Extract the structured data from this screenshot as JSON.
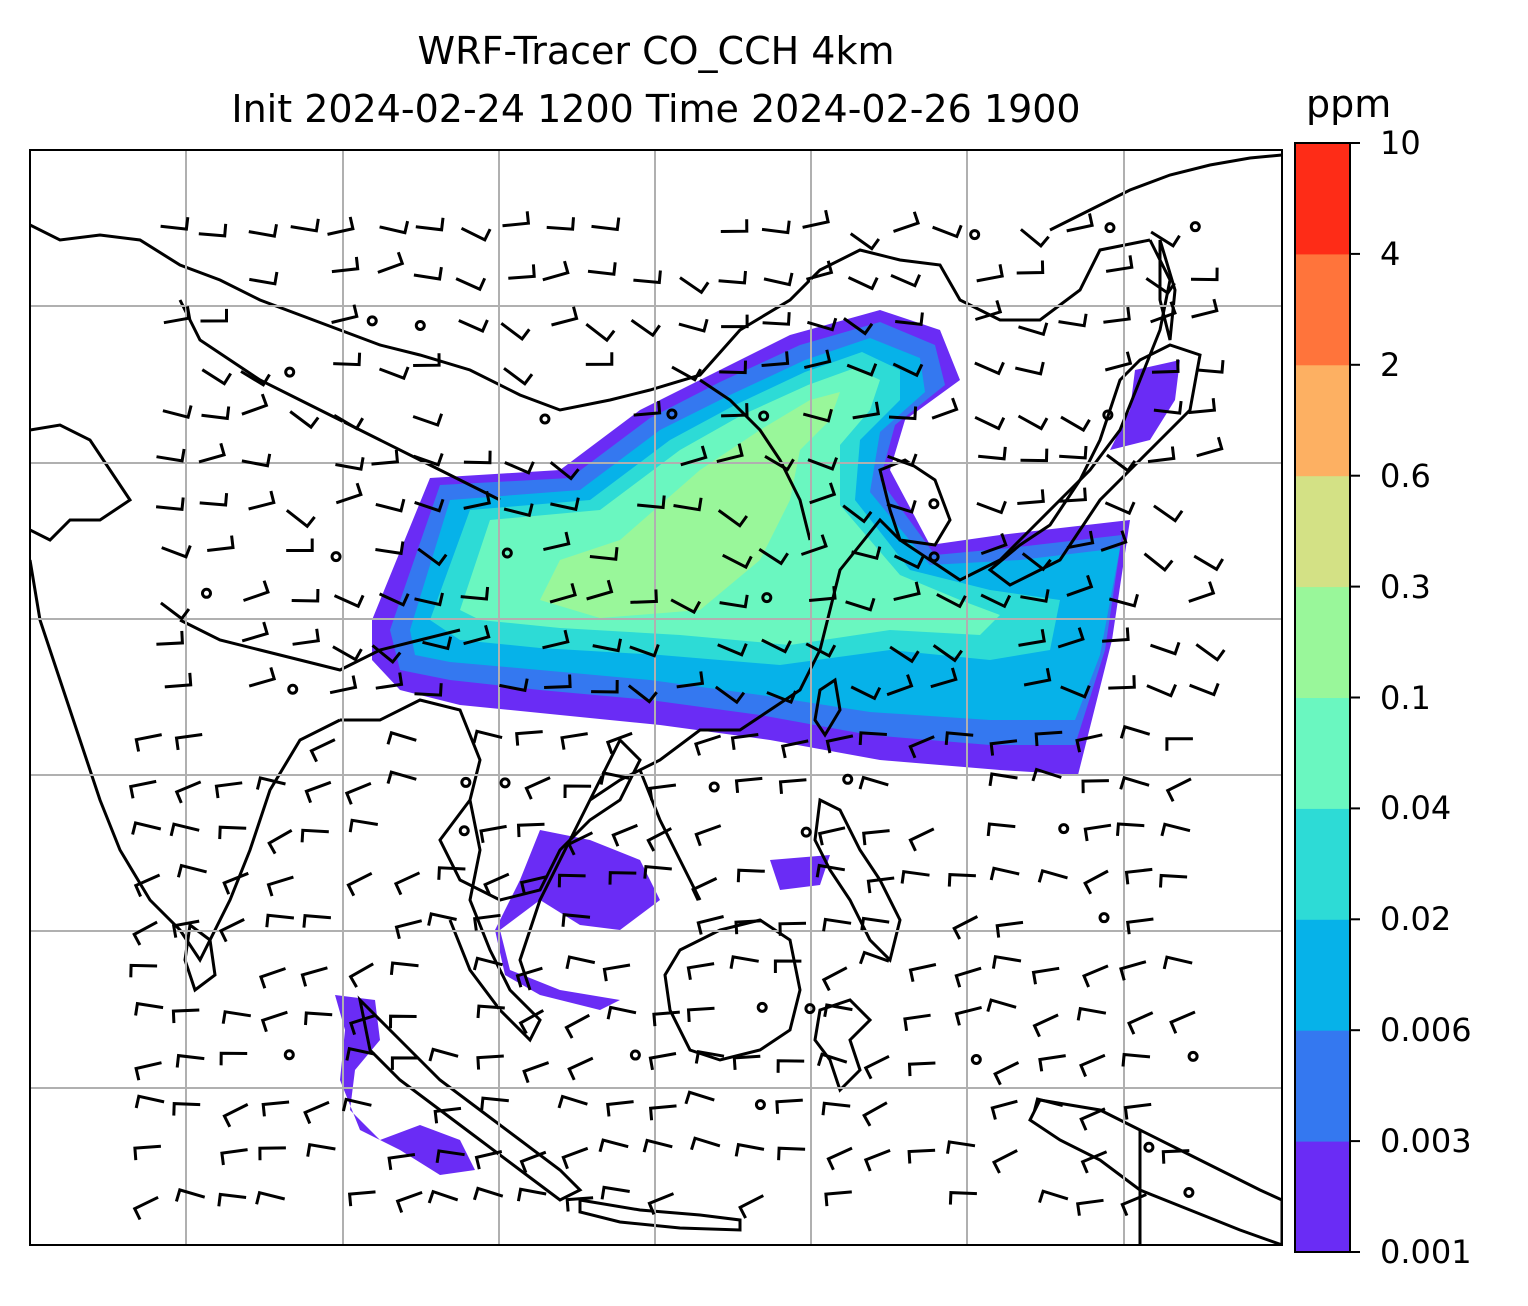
{
  "title": {
    "line1": "WRF-Tracer CO_CCH 4km",
    "line2": "Init 2024-02-24 1200 Time 2024-02-26 1900"
  },
  "colorbar": {
    "unit": "ppm",
    "levels": [
      "0.001",
      "0.003",
      "0.006",
      "0.02",
      "0.04",
      "0.1",
      "0.3",
      "0.6",
      "2",
      "4",
      "10"
    ],
    "colors": [
      "#6a2cf5",
      "#3478f0",
      "#06b2e9",
      "#2ddbd6",
      "#6af7c0",
      "#99f79a",
      "#d3e185",
      "#fdb062",
      "#ff743b",
      "#fe2c17"
    ]
  },
  "map": {
    "gridlines": true,
    "wind_barbs": true,
    "tracer_field": "CO_CCH",
    "resolution": "4km"
  }
}
